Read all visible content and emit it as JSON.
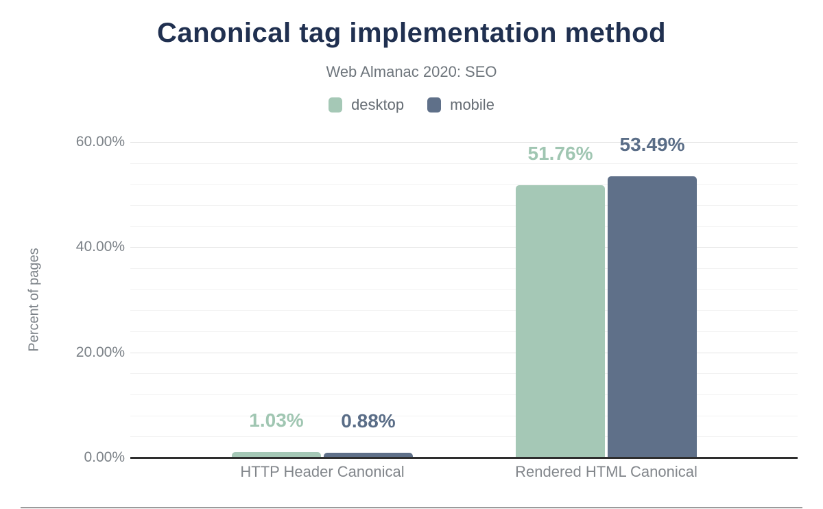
{
  "chart_data": {
    "type": "bar",
    "title": "Canonical tag implementation method",
    "subtitle": "Web Almanac 2020: SEO",
    "categories": [
      "HTTP Header Canonical",
      "Rendered HTML Canonical"
    ],
    "series": [
      {
        "name": "desktop",
        "color": "#a5c8b6",
        "label_color": "#a0c6b2",
        "values": [
          1.03,
          51.76
        ],
        "value_labels": [
          "1.03%",
          "51.76%"
        ]
      },
      {
        "name": "mobile",
        "color": "#5f7089",
        "label_color": "#5a6d87",
        "values": [
          0.88,
          53.49
        ],
        "value_labels": [
          "0.88%",
          "53.49%"
        ]
      }
    ],
    "xlabel": "",
    "ylabel": "Percent of pages",
    "ylim": [
      0,
      60
    ],
    "yticks": [
      {
        "value": 0,
        "label": "0.00%"
      },
      {
        "value": 20,
        "label": "20.00%"
      },
      {
        "value": 40,
        "label": "40.00%"
      },
      {
        "value": 60,
        "label": "60.00%"
      }
    ],
    "minor_grid_step": 4,
    "grid": true,
    "legend_position": "top"
  },
  "figure": {
    "bottom_divider_color": "#9b9b9b"
  }
}
